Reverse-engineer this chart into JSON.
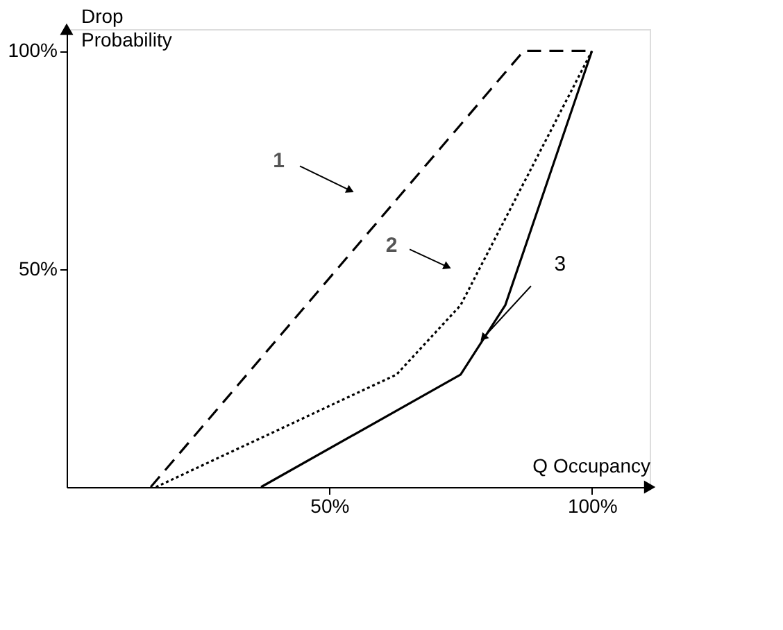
{
  "chart_data": {
    "type": "line",
    "xlabel": "Q Occupancy",
    "ylabel": "Drop Probability",
    "xlim": [
      0,
      111
    ],
    "ylim": [
      0,
      105
    ],
    "xticks": [
      {
        "value": 50,
        "label": "50%"
      },
      {
        "value": 100,
        "label": "100%"
      }
    ],
    "yticks": [
      {
        "value": 50,
        "label": "50%"
      },
      {
        "value": 100,
        "label": "100%"
      }
    ],
    "grid": false,
    "marker": "none",
    "series": [
      {
        "color": "#000000",
        "line_style": "dashed",
        "x": [
          16,
          87,
          100
        ],
        "values": [
          0,
          100,
          100
        ]
      },
      {
        "color": "#000000",
        "line_style": "dotted",
        "x": [
          17,
          62.8,
          75,
          100
        ],
        "values": [
          0,
          25.8,
          41.7,
          100
        ]
      },
      {
        "color": "#000000",
        "line_style": "solid",
        "x": [
          37,
          75,
          83.5,
          100
        ],
        "values": [
          0,
          25.8,
          41.7,
          100
        ]
      }
    ],
    "annotations": [
      {
        "text": "1",
        "x": 54,
        "y": 68
      },
      {
        "text": "2",
        "x": 72.5,
        "y": 50.5
      },
      {
        "text": "3",
        "x": 79.3,
        "y": 34.2
      }
    ]
  }
}
